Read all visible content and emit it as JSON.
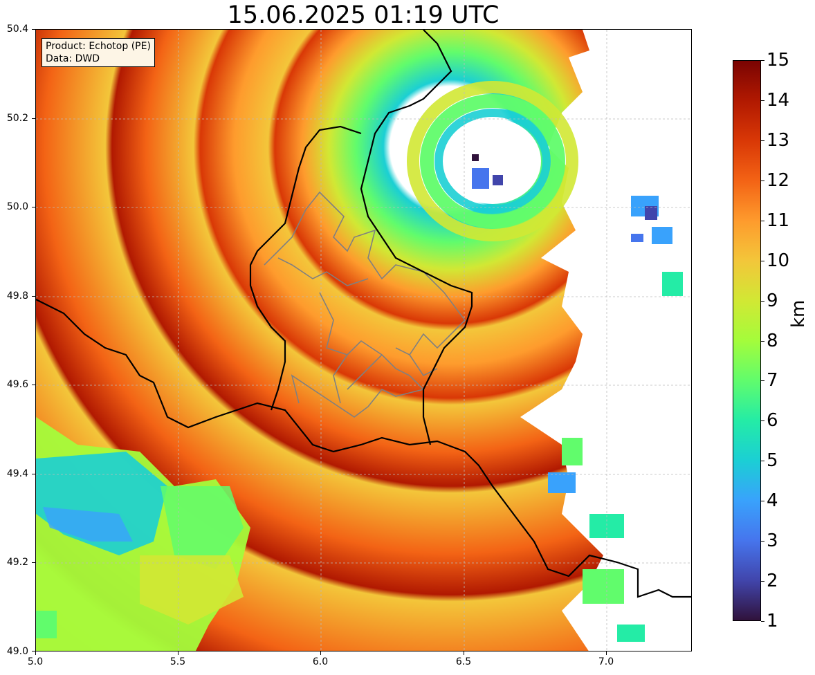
{
  "title": "15.06.2025 01:19 UTC",
  "info_box": {
    "line1": "Product: Echotop (PE)",
    "line2": "Data: DWD"
  },
  "map": {
    "lon_range": [
      5.0,
      7.3
    ],
    "lat_range": [
      49.0,
      50.4
    ],
    "lon_ticks": [
      "5.0",
      "5.5",
      "6.0",
      "6.5",
      "7.0"
    ],
    "lat_ticks": [
      "50.4",
      "50.2",
      "50.0",
      "49.8",
      "49.6",
      "49.4",
      "49.2",
      "49.0"
    ],
    "grid": true,
    "layers": [
      "echotop-field",
      "country-borders",
      "district-borders",
      "gridlines"
    ]
  },
  "colorbar": {
    "label": "km",
    "min": 1,
    "max": 15,
    "ticks": [
      "15",
      "14",
      "13",
      "12",
      "11",
      "10",
      "9",
      "8",
      "7",
      "6",
      "5",
      "4",
      "3",
      "2",
      "1"
    ],
    "colormap": "turbo",
    "colors": [
      "#30123b",
      "#4145ab",
      "#4675ed",
      "#39a2fc",
      "#1bcfd4",
      "#24eca6",
      "#61fc6c",
      "#a4fc3b",
      "#d1e834",
      "#f3c63a",
      "#fe9b2d",
      "#f36315",
      "#d93806",
      "#b11901",
      "#7a0402"
    ]
  }
}
